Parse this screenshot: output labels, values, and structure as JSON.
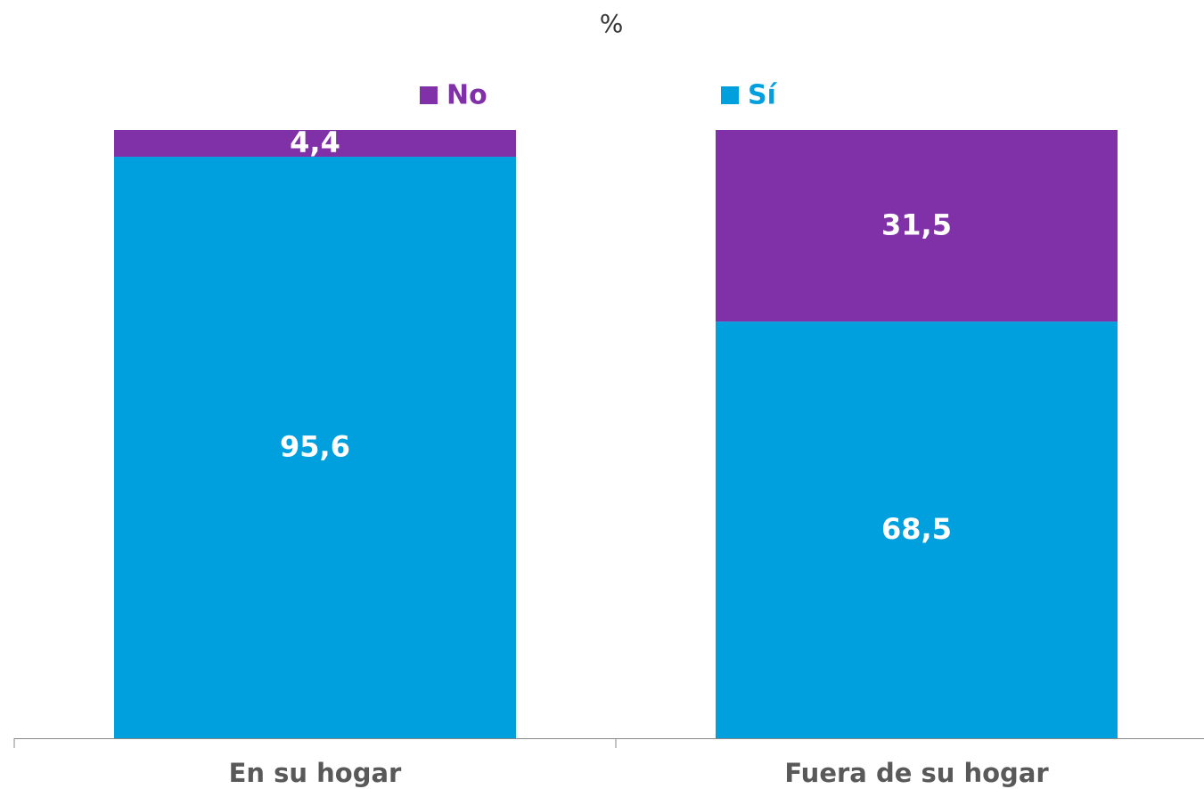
{
  "chart_data": {
    "type": "stacked_bar",
    "title": "%",
    "categories": [
      "En su hogar",
      "Fuera de su hogar"
    ],
    "series": [
      {
        "name": "Sí",
        "color": "#00a0df",
        "values": [
          95.6,
          68.5
        ],
        "value_labels": [
          "95,6",
          "68,5"
        ]
      },
      {
        "name": "No",
        "color": "#8031a7",
        "values": [
          4.4,
          31.5
        ],
        "value_labels": [
          "4,4",
          "31,5"
        ]
      }
    ],
    "ylim": [
      0,
      100
    ]
  }
}
